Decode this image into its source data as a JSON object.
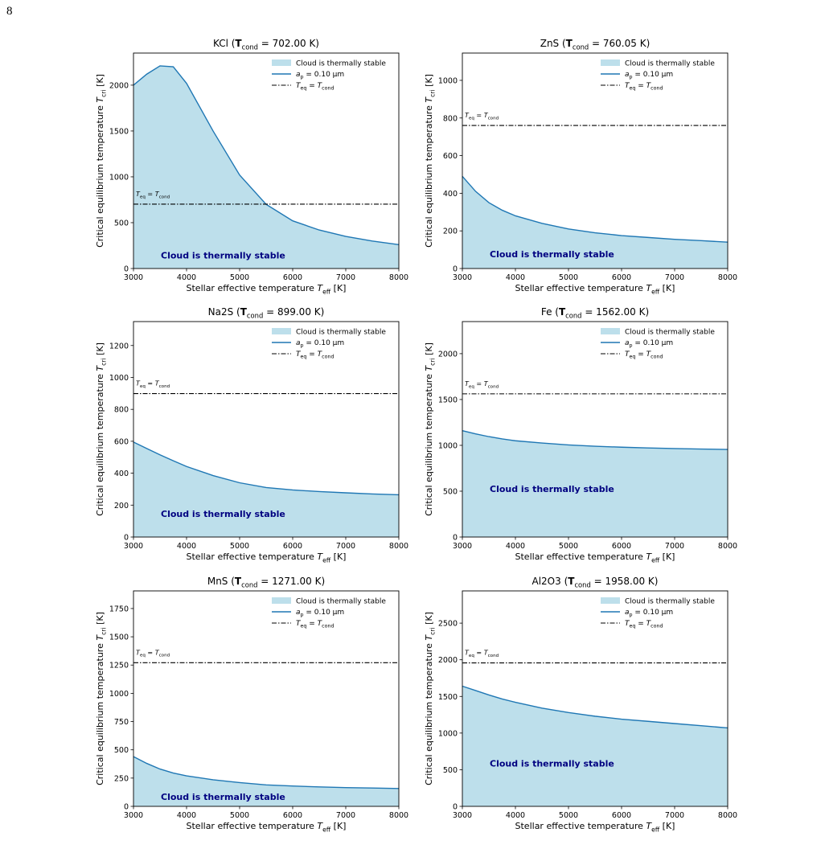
{
  "page_number": "8",
  "chart_data": [
    {
      "type": "line",
      "title": [
        "KCl (",
        "T",
        "cond",
        " = 702.00 K)"
      ],
      "xlabel": [
        "Stellar effective temperature ",
        "T",
        "eff",
        " [K]"
      ],
      "ylabel": [
        "Critical equilibrium temperature ",
        "T",
        "cri",
        " [K]"
      ],
      "x": [
        3000,
        3250,
        3500,
        3750,
        4000,
        4500,
        5000,
        5500,
        6000,
        6500,
        7000,
        7500,
        8000
      ],
      "series": [
        {
          "name": [
            "a",
            "p",
            " = 0.10 μm"
          ],
          "color": "#1f77b4",
          "values": [
            2000,
            2120,
            2210,
            2200,
            2020,
            1500,
            1020,
            700,
            520,
            420,
            350,
            300,
            260
          ]
        }
      ],
      "fill_label": "Cloud is thermally stable",
      "fill_color": "#bddfeb",
      "annotation": "Cloud is thermally stable",
      "hline": {
        "value": 702,
        "name": [
          "T",
          "eq",
          " = ",
          "T",
          "cond"
        ],
        "label": [
          "T",
          "eq",
          " = ",
          "T",
          "cond"
        ]
      },
      "xlim": [
        3000,
        8000
      ],
      "xticks": [
        3000,
        4000,
        5000,
        6000,
        7000,
        8000
      ],
      "ylim": [
        0,
        2350
      ],
      "yticks": [
        0,
        500,
        1000,
        1500,
        2000
      ],
      "legend": "upper right"
    },
    {
      "type": "line",
      "title": [
        "ZnS (",
        "T",
        "cond",
        " = 760.05 K)"
      ],
      "xlabel": [
        "Stellar effective temperature ",
        "T",
        "eff",
        " [K]"
      ],
      "ylabel": [
        "Critical equilibrium temperature ",
        "T",
        "cri",
        " [K]"
      ],
      "x": [
        3000,
        3250,
        3500,
        3750,
        4000,
        4500,
        5000,
        5500,
        6000,
        6500,
        7000,
        7500,
        8000
      ],
      "series": [
        {
          "name": [
            "a",
            "p",
            " = 0.10 μm"
          ],
          "color": "#1f77b4",
          "values": [
            490,
            410,
            350,
            310,
            280,
            240,
            210,
            190,
            175,
            165,
            155,
            148,
            140
          ]
        }
      ],
      "fill_label": "Cloud is thermally stable",
      "fill_color": "#bddfeb",
      "annotation": "Cloud is thermally stable",
      "hline": {
        "value": 760.05,
        "name": [
          "T",
          "eq",
          " = ",
          "T",
          "cond"
        ],
        "label": [
          "T",
          "eq",
          " = ",
          "T",
          "cond"
        ]
      },
      "xlim": [
        3000,
        8000
      ],
      "xticks": [
        3000,
        4000,
        5000,
        6000,
        7000,
        8000
      ],
      "ylim": [
        0,
        1145
      ],
      "yticks": [
        0,
        200,
        400,
        600,
        800,
        1000
      ],
      "legend": "upper right"
    },
    {
      "type": "line",
      "title": [
        "Na2S (",
        "T",
        "cond",
        " = 899.00 K)"
      ],
      "xlabel": [
        "Stellar effective temperature ",
        "T",
        "eff",
        " [K]"
      ],
      "ylabel": [
        "Critical equilibrium temperature ",
        "T",
        "cri",
        " [K]"
      ],
      "x": [
        3000,
        3250,
        3500,
        3750,
        4000,
        4500,
        5000,
        5500,
        6000,
        6500,
        7000,
        7500,
        8000
      ],
      "series": [
        {
          "name": [
            "a",
            "p",
            " = 0.10 μm"
          ],
          "color": "#1f77b4",
          "values": [
            595,
            555,
            515,
            478,
            442,
            385,
            340,
            310,
            295,
            285,
            277,
            270,
            265
          ]
        }
      ],
      "fill_label": "Cloud is thermally stable",
      "fill_color": "#bddfeb",
      "annotation": "Cloud is thermally stable",
      "hline": {
        "value": 899,
        "name": [
          "T",
          "eq",
          " = ",
          "T",
          "cond"
        ],
        "label": [
          "T",
          "eq",
          " = ",
          "T",
          "cond"
        ]
      },
      "xlim": [
        3000,
        8000
      ],
      "xticks": [
        3000,
        4000,
        5000,
        6000,
        7000,
        8000
      ],
      "ylim": [
        0,
        1350
      ],
      "yticks": [
        0,
        200,
        400,
        600,
        800,
        1000,
        1200
      ],
      "legend": "upper right"
    },
    {
      "type": "line",
      "title": [
        "Fe (",
        "T",
        "cond",
        " = 1562.00 K)"
      ],
      "xlabel": [
        "Stellar effective temperature ",
        "T",
        "eff",
        " [K]"
      ],
      "ylabel": [
        "Critical equilibrium temperature ",
        "T",
        "cri",
        " [K]"
      ],
      "x": [
        3000,
        3250,
        3500,
        3750,
        4000,
        4500,
        5000,
        5500,
        6000,
        6500,
        7000,
        7500,
        8000
      ],
      "series": [
        {
          "name": [
            "a",
            "p",
            " = 0.10 μm"
          ],
          "color": "#1f77b4",
          "values": [
            1160,
            1125,
            1095,
            1070,
            1050,
            1025,
            1005,
            990,
            980,
            972,
            965,
            960,
            955
          ]
        }
      ],
      "fill_label": "Cloud is thermally stable",
      "fill_color": "#bddfeb",
      "annotation": "Cloud is thermally stable",
      "hline": {
        "value": 1562,
        "name": [
          "T",
          "eq",
          " = ",
          "T",
          "cond"
        ],
        "label": [
          "T",
          "eq",
          " = ",
          "T",
          "cond"
        ]
      },
      "xlim": [
        3000,
        8000
      ],
      "xticks": [
        3000,
        4000,
        5000,
        6000,
        7000,
        8000
      ],
      "ylim": [
        0,
        2350
      ],
      "yticks": [
        0,
        500,
        1000,
        1500,
        2000
      ],
      "legend": "upper right"
    },
    {
      "type": "line",
      "title": [
        "MnS (",
        "T",
        "cond",
        " = 1271.00 K)"
      ],
      "xlabel": [
        "Stellar effective temperature ",
        "T",
        "eff",
        " [K]"
      ],
      "ylabel": [
        "Critical equilibrium temperature ",
        "T",
        "cri",
        " [K]"
      ],
      "x": [
        3000,
        3250,
        3500,
        3750,
        4000,
        4500,
        5000,
        5500,
        6000,
        6500,
        7000,
        7500,
        8000
      ],
      "series": [
        {
          "name": [
            "a",
            "p",
            " = 0.10 μm"
          ],
          "color": "#1f77b4",
          "values": [
            440,
            380,
            330,
            295,
            270,
            235,
            210,
            190,
            180,
            172,
            166,
            162,
            158
          ]
        }
      ],
      "fill_label": "Cloud is thermally stable",
      "fill_color": "#bddfeb",
      "annotation": "Cloud is thermally stable",
      "hline": {
        "value": 1271,
        "name": [
          "T",
          "eq",
          " = ",
          "T",
          "cond"
        ],
        "label": [
          "T",
          "eq",
          " = ",
          "T",
          "cond"
        ]
      },
      "xlim": [
        3000,
        8000
      ],
      "xticks": [
        3000,
        4000,
        5000,
        6000,
        7000,
        8000
      ],
      "ylim": [
        0,
        1906
      ],
      "yticks": [
        0,
        250,
        500,
        750,
        1000,
        1250,
        1500,
        1750
      ],
      "legend": "upper right"
    },
    {
      "type": "line",
      "title": [
        "Al2O3 (",
        "T",
        "cond",
        " = 1958.00 K)"
      ],
      "xlabel": [
        "Stellar effective temperature ",
        "T",
        "eff",
        " [K]"
      ],
      "ylabel": [
        "Critical equilibrium temperature ",
        "T",
        "cri",
        " [K]"
      ],
      "x": [
        3000,
        3250,
        3500,
        3750,
        4000,
        4500,
        5000,
        5500,
        6000,
        6500,
        7000,
        7500,
        8000
      ],
      "series": [
        {
          "name": [
            "a",
            "p",
            " = 0.10 μm"
          ],
          "color": "#1f77b4",
          "values": [
            1640,
            1580,
            1520,
            1465,
            1420,
            1340,
            1280,
            1230,
            1190,
            1160,
            1130,
            1100,
            1070
          ]
        }
      ],
      "fill_label": "Cloud is thermally stable",
      "fill_color": "#bddfeb",
      "annotation": "Cloud is thermally stable",
      "hline": {
        "value": 1958,
        "name": [
          "T",
          "eq",
          " = ",
          "T",
          "cond"
        ],
        "label": [
          "T",
          "eq",
          " = ",
          "T",
          "cond"
        ]
      },
      "xlim": [
        3000,
        8000
      ],
      "xticks": [
        3000,
        4000,
        5000,
        6000,
        7000,
        8000
      ],
      "ylim": [
        0,
        2940
      ],
      "yticks": [
        0,
        500,
        1000,
        1500,
        2000,
        2500
      ],
      "legend": "upper right"
    }
  ]
}
